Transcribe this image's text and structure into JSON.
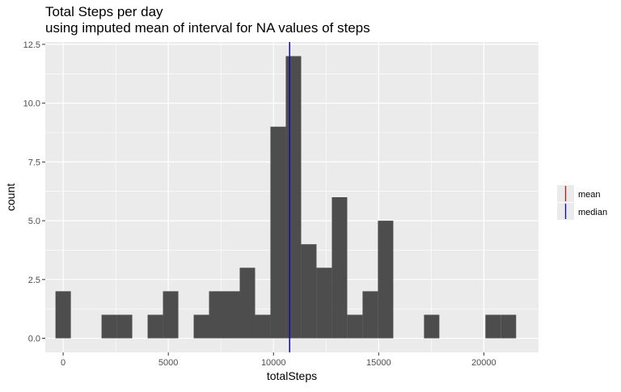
{
  "chart_data": {
    "type": "bar",
    "title": "Total Steps per day",
    "subtitle": "using imputed mean of interval for NA values of steps",
    "xlabel": "totalSteps",
    "ylabel": "count",
    "xlim": [
      -850,
      22600
    ],
    "ylim": [
      -0.6,
      12.6
    ],
    "xticks": [
      0,
      5000,
      10000,
      15000,
      20000
    ],
    "xtick_labels": [
      "0",
      "5000",
      "10000",
      "15000",
      "20000"
    ],
    "yticks": [
      0,
      2.5,
      5,
      7.5,
      10,
      12.5
    ],
    "ytick_labels": [
      "0.0",
      "2.5",
      "5.0",
      "7.5",
      "10.0",
      "12.5"
    ],
    "bin_width": 730,
    "bins": [
      {
        "x": 0,
        "count": 2
      },
      {
        "x": 730,
        "count": 0
      },
      {
        "x": 1460,
        "count": 0
      },
      {
        "x": 2190,
        "count": 1
      },
      {
        "x": 2920,
        "count": 1
      },
      {
        "x": 3650,
        "count": 0
      },
      {
        "x": 4380,
        "count": 1
      },
      {
        "x": 5110,
        "count": 2
      },
      {
        "x": 5840,
        "count": 0
      },
      {
        "x": 6570,
        "count": 1
      },
      {
        "x": 7300,
        "count": 2
      },
      {
        "x": 8030,
        "count": 2
      },
      {
        "x": 8760,
        "count": 3
      },
      {
        "x": 9490,
        "count": 1
      },
      {
        "x": 10220,
        "count": 9
      },
      {
        "x": 10950,
        "count": 12
      },
      {
        "x": 11680,
        "count": 4
      },
      {
        "x": 12410,
        "count": 3
      },
      {
        "x": 13140,
        "count": 6
      },
      {
        "x": 13870,
        "count": 1
      },
      {
        "x": 14600,
        "count": 2
      },
      {
        "x": 15330,
        "count": 5
      },
      {
        "x": 16060,
        "count": 0
      },
      {
        "x": 16790,
        "count": 0
      },
      {
        "x": 17520,
        "count": 1
      },
      {
        "x": 18250,
        "count": 0
      },
      {
        "x": 18980,
        "count": 0
      },
      {
        "x": 19710,
        "count": 0
      },
      {
        "x": 20440,
        "count": 1
      },
      {
        "x": 21170,
        "count": 1
      }
    ],
    "vlines": [
      {
        "name": "mean",
        "x": 10766.19,
        "color": "#FF0000"
      },
      {
        "name": "median",
        "x": 10766.19,
        "color": "#0000FF"
      }
    ],
    "legend": {
      "position": "right",
      "entries": [
        "mean",
        "median"
      ]
    },
    "grid": true,
    "colors": {
      "bar": "#4D4D4D",
      "panel": "#EBEBEB",
      "grid": "#FFFFFF",
      "legend_key": "#EBEBEB"
    }
  }
}
